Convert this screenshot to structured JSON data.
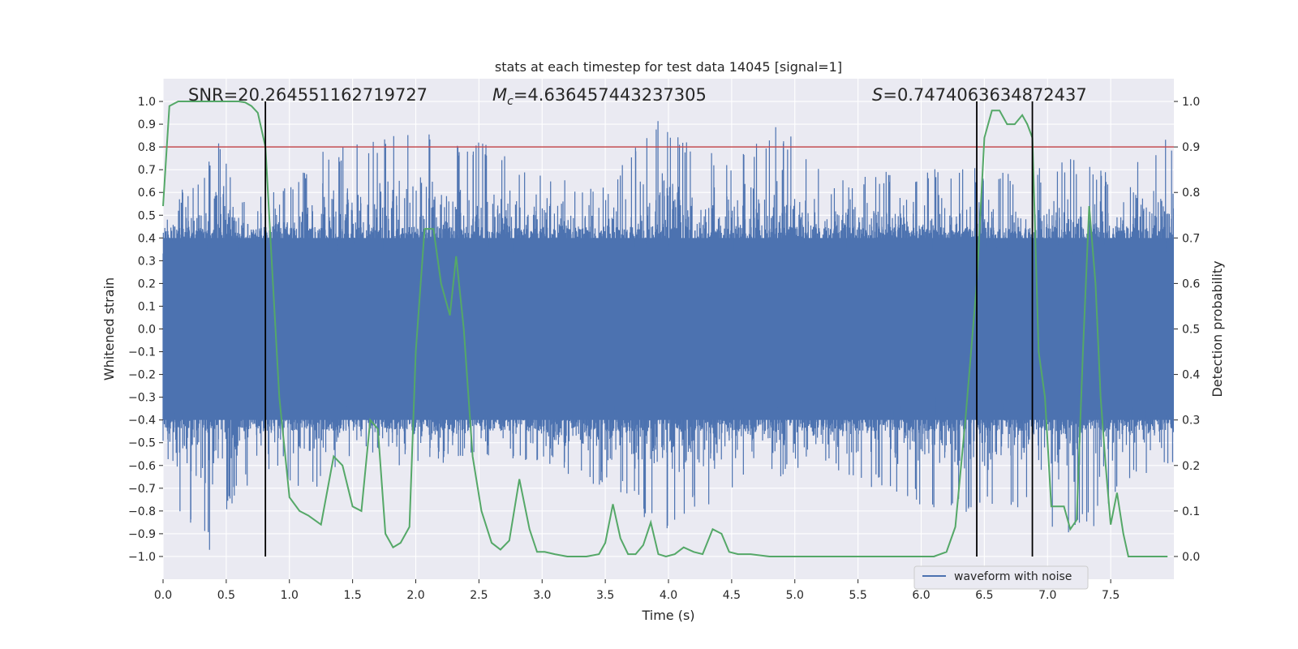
{
  "chart_data": {
    "type": "line",
    "title": "stats at each timestep for test data 14045 [signal=1]",
    "xlabel": "Time (s)",
    "ylabel_left": "Whitened strain",
    "ylabel_right": "Detection probability",
    "xlim": [
      0,
      8
    ],
    "ylim_left": [
      -1.1,
      1.1
    ],
    "ylim_right": [
      -0.05,
      1.05
    ],
    "grid": true,
    "legend_placement": "lower-right",
    "x_ticks": [
      0.0,
      0.5,
      1.0,
      1.5,
      2.0,
      2.5,
      3.0,
      3.5,
      4.0,
      4.5,
      5.0,
      5.5,
      6.0,
      6.5,
      7.0,
      7.5
    ],
    "x_tick_labels": [
      "0.0",
      "0.5",
      "1.0",
      "1.5",
      "2.0",
      "2.5",
      "3.0",
      "3.5",
      "4.0",
      "4.5",
      "5.0",
      "5.5",
      "6.0",
      "6.5",
      "7.0",
      "7.5"
    ],
    "y_left_ticks": [
      -1.0,
      -0.9,
      -0.8,
      -0.7,
      -0.6,
      -0.5,
      -0.4,
      -0.3,
      -0.2,
      -0.1,
      0.0,
      0.1,
      0.2,
      0.3,
      0.4,
      0.5,
      0.6,
      0.7,
      0.8,
      0.9,
      1.0
    ],
    "y_left_tick_labels": [
      "−1.0",
      "−0.9",
      "−0.8",
      "−0.7",
      "−0.6",
      "−0.5",
      "−0.4",
      "−0.3",
      "−0.2",
      "−0.1",
      "0.0",
      "0.1",
      "0.2",
      "0.3",
      "0.4",
      "0.5",
      "0.6",
      "0.7",
      "0.8",
      "0.9",
      "1.0"
    ],
    "y_right_ticks": [
      0.0,
      0.1,
      0.2,
      0.3,
      0.4,
      0.5,
      0.6,
      0.7,
      0.8,
      0.9,
      1.0
    ],
    "y_right_tick_labels": [
      "0.0",
      "0.1",
      "0.2",
      "0.3",
      "0.4",
      "0.5",
      "0.6",
      "0.7",
      "0.8",
      "0.9",
      "1.0"
    ],
    "annotations": {
      "snr": "SNR=20.264551162719727",
      "mc_symbol": "M",
      "mc_sub": "c",
      "mc_value": "=4.636457443237305",
      "s_symbol": "S",
      "s_value": "=0.7474063634872437"
    },
    "threshold": {
      "value": 0.9,
      "axis": "right",
      "color": "#c44e52"
    },
    "vertical_lines": [
      0.81,
      6.44,
      6.88
    ],
    "series": [
      {
        "name": "waveform with noise",
        "axis": "left",
        "color": "#4c72b0",
        "note_samples": 4000,
        "envelope_pos": [
          [
            0.0,
            0.45
          ],
          [
            0.1,
            0.6
          ],
          [
            0.3,
            0.65
          ],
          [
            0.46,
            0.88
          ],
          [
            0.6,
            0.6
          ],
          [
            0.9,
            0.62
          ],
          [
            1.25,
            0.78
          ],
          [
            1.9,
            0.87
          ],
          [
            2.5,
            0.83
          ],
          [
            3.0,
            0.7
          ],
          [
            3.5,
            0.62
          ],
          [
            3.9,
            0.94
          ],
          [
            4.2,
            0.82
          ],
          [
            4.5,
            0.74
          ],
          [
            4.85,
            0.92
          ],
          [
            5.3,
            0.65
          ],
          [
            5.8,
            0.7
          ],
          [
            6.3,
            0.72
          ],
          [
            6.6,
            0.7
          ],
          [
            6.9,
            0.7
          ],
          [
            7.2,
            0.76
          ],
          [
            7.5,
            0.68
          ],
          [
            7.8,
            0.82
          ],
          [
            7.95,
            0.85
          ]
        ],
        "envelope_neg": [
          [
            0.0,
            -0.65
          ],
          [
            0.15,
            -0.82
          ],
          [
            0.38,
            -1.0
          ],
          [
            0.6,
            -0.7
          ],
          [
            0.9,
            -0.65
          ],
          [
            1.1,
            -0.76
          ],
          [
            1.5,
            -0.55
          ],
          [
            2.0,
            -0.62
          ],
          [
            2.5,
            -0.55
          ],
          [
            3.0,
            -0.6
          ],
          [
            3.6,
            -0.72
          ],
          [
            3.95,
            -0.9
          ],
          [
            4.15,
            -0.82
          ],
          [
            4.6,
            -0.7
          ],
          [
            5.2,
            -0.6
          ],
          [
            5.6,
            -0.7
          ],
          [
            6.2,
            -0.82
          ],
          [
            6.6,
            -0.78
          ],
          [
            6.9,
            -0.82
          ],
          [
            7.1,
            -0.92
          ],
          [
            7.4,
            -0.86
          ],
          [
            7.7,
            -0.65
          ],
          [
            7.95,
            -0.6
          ]
        ]
      },
      {
        "name": "",
        "axis": "right",
        "color": "#55a868",
        "x": [
          0.0,
          0.05,
          0.12,
          0.2,
          0.3,
          0.4,
          0.5,
          0.6,
          0.65,
          0.7,
          0.75,
          0.81,
          0.86,
          0.92,
          1.0,
          1.08,
          1.15,
          1.25,
          1.35,
          1.42,
          1.5,
          1.57,
          1.64,
          1.7,
          1.76,
          1.82,
          1.88,
          1.95,
          2.0,
          2.07,
          2.14,
          2.2,
          2.27,
          2.32,
          2.38,
          2.45,
          2.52,
          2.6,
          2.67,
          2.74,
          2.82,
          2.9,
          2.96,
          3.02,
          3.1,
          3.2,
          3.35,
          3.45,
          3.5,
          3.56,
          3.62,
          3.68,
          3.74,
          3.8,
          3.86,
          3.92,
          3.98,
          4.05,
          4.12,
          4.2,
          4.27,
          4.35,
          4.42,
          4.48,
          4.55,
          4.65,
          4.8,
          5.0,
          5.2,
          5.4,
          5.6,
          5.8,
          6.0,
          6.1,
          6.2,
          6.27,
          6.35,
          6.44,
          6.5,
          6.56,
          6.62,
          6.68,
          6.74,
          6.8,
          6.84,
          6.88,
          6.93,
          6.98,
          7.03,
          7.08,
          7.13,
          7.18,
          7.23,
          7.28,
          7.33,
          7.38,
          7.42,
          7.46,
          7.5,
          7.55,
          7.6,
          7.64,
          7.7,
          7.76,
          7.82,
          7.9,
          7.95
        ],
        "y": [
          0.77,
          0.99,
          1.0,
          1.0,
          1.0,
          1.0,
          1.0,
          1.0,
          0.998,
          0.99,
          0.975,
          0.9,
          0.65,
          0.35,
          0.13,
          0.1,
          0.09,
          0.07,
          0.22,
          0.2,
          0.11,
          0.1,
          0.3,
          0.28,
          0.05,
          0.02,
          0.03,
          0.065,
          0.45,
          0.72,
          0.72,
          0.6,
          0.53,
          0.66,
          0.5,
          0.22,
          0.1,
          0.03,
          0.015,
          0.035,
          0.17,
          0.06,
          0.01,
          0.01,
          0.005,
          0.0,
          0.0,
          0.005,
          0.03,
          0.115,
          0.04,
          0.005,
          0.005,
          0.025,
          0.075,
          0.005,
          0.0,
          0.005,
          0.02,
          0.01,
          0.005,
          0.06,
          0.05,
          0.01,
          0.005,
          0.005,
          0.0,
          0.0,
          0.0,
          0.0,
          0.0,
          0.0,
          0.0,
          0.0,
          0.01,
          0.065,
          0.3,
          0.6,
          0.92,
          0.98,
          0.98,
          0.95,
          0.95,
          0.97,
          0.95,
          0.92,
          0.45,
          0.35,
          0.11,
          0.11,
          0.11,
          0.06,
          0.08,
          0.45,
          0.77,
          0.6,
          0.35,
          0.2,
          0.07,
          0.14,
          0.05,
          0.0,
          0.0,
          0.0,
          0.0,
          0.0,
          0.0
        ]
      }
    ]
  }
}
